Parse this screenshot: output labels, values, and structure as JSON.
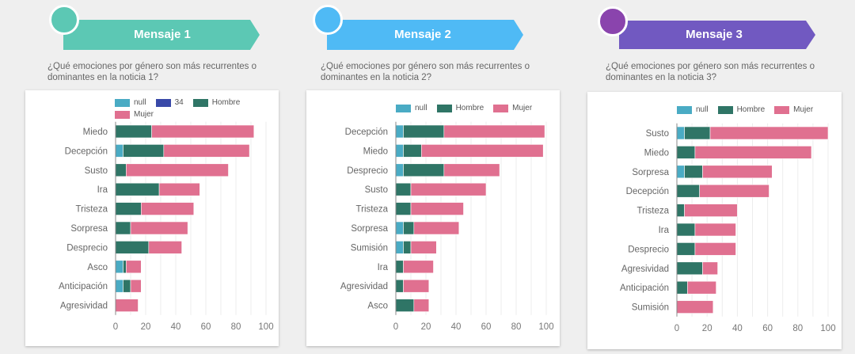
{
  "colors": {
    "null": "#4aabc4",
    "34": "#3949a8",
    "Hombre": "#2f7566",
    "Mujer": "#e07090",
    "banner1": "#5cc8b4",
    "bubble1": "#5cc8b4",
    "banner2": "#4fbaf5",
    "bubble2": "#4fbaf5",
    "banner3": "#7159c1",
    "bubble3": "#8a44ad"
  },
  "panels": [
    {
      "title": "Mensaje 1",
      "question": "¿Qué emociones por género son más recurrentes o dominantes en la noticia 1?"
    },
    {
      "title": "Mensaje 2",
      "question": "¿Qué emociones por género son más recurrentes o dominantes en la noticia 2?"
    },
    {
      "title": "Mensaje 3",
      "question": "¿Qué emociones por género son más recurrentes o dominantes en la noticia 3?"
    }
  ],
  "chart_data": [
    {
      "type": "bar",
      "orientation": "horizontal",
      "stacked": true,
      "title": "Mensaje 1",
      "legend": [
        "null",
        "34",
        "Hombre",
        "Mujer"
      ],
      "legend_position": "top",
      "categories": [
        "Miedo",
        "Decepción",
        "Susto",
        "Ira",
        "Tristeza",
        "Sorpresa",
        "Desprecio",
        "Asco",
        "Anticipación",
        "Agresividad"
      ],
      "series": [
        {
          "name": "null",
          "values": [
            0,
            5,
            0,
            0,
            0,
            0,
            0,
            5,
            5,
            0
          ]
        },
        {
          "name": "34",
          "values": [
            0,
            0,
            0,
            0,
            0,
            0,
            0,
            0,
            0,
            0
          ]
        },
        {
          "name": "Hombre",
          "values": [
            24,
            27,
            7,
            29,
            17,
            10,
            22,
            2,
            5,
            0
          ]
        },
        {
          "name": "Mujer",
          "values": [
            68,
            57,
            68,
            27,
            35,
            38,
            22,
            10,
            7,
            15
          ]
        }
      ],
      "xlim": [
        0,
        100
      ],
      "xticks": [
        "0",
        "20",
        "40",
        "60",
        "80",
        "100"
      ],
      "grid": true
    },
    {
      "type": "bar",
      "orientation": "horizontal",
      "stacked": true,
      "title": "Mensaje 2",
      "legend": [
        "null",
        "Hombre",
        "Mujer"
      ],
      "legend_position": "top",
      "categories": [
        "Decepción",
        "Miedo",
        "Desprecio",
        "Susto",
        "Tristeza",
        "Sorpresa",
        "Sumisión",
        "Ira",
        "Agresividad",
        "Asco"
      ],
      "series": [
        {
          "name": "null",
          "values": [
            5,
            5,
            5,
            0,
            0,
            5,
            5,
            0,
            0,
            0
          ]
        },
        {
          "name": "Hombre",
          "values": [
            27,
            12,
            27,
            10,
            10,
            7,
            5,
            5,
            5,
            12
          ]
        },
        {
          "name": "Mujer",
          "values": [
            67,
            81,
            37,
            50,
            35,
            30,
            17,
            20,
            17,
            10
          ]
        }
      ],
      "xlim": [
        0,
        100
      ],
      "xticks": [
        "0",
        "20",
        "40",
        "60",
        "80",
        "100"
      ],
      "grid": true
    },
    {
      "type": "bar",
      "orientation": "horizontal",
      "stacked": true,
      "title": "Mensaje 3",
      "legend": [
        "null",
        "Hombre",
        "Mujer"
      ],
      "legend_position": "top",
      "categories": [
        "Susto",
        "Miedo",
        "Sorpresa",
        "Decepción",
        "Tristeza",
        "Ira",
        "Desprecio",
        "Agresividad",
        "Anticipación",
        "Sumisión"
      ],
      "series": [
        {
          "name": "null",
          "values": [
            5,
            0,
            5,
            0,
            0,
            0,
            0,
            0,
            0,
            0
          ]
        },
        {
          "name": "Hombre",
          "values": [
            17,
            12,
            12,
            15,
            5,
            12,
            12,
            17,
            7,
            0
          ]
        },
        {
          "name": "Mujer",
          "values": [
            78,
            77,
            46,
            46,
            35,
            27,
            27,
            10,
            19,
            24
          ]
        }
      ],
      "xlim": [
        0,
        100
      ],
      "xticks": [
        "0",
        "20",
        "40",
        "60",
        "80",
        "100"
      ],
      "grid": true
    }
  ]
}
